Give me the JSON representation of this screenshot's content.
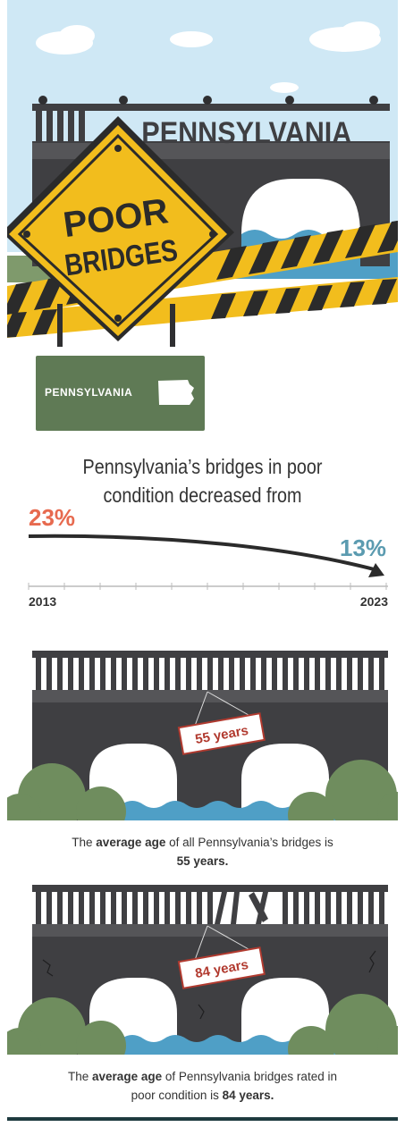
{
  "hero": {
    "sign_text": "PENNSYLVANIA",
    "warning_line1": "POOR",
    "warning_line2": "BRIDGES"
  },
  "state_badge": {
    "label": "PENNSYLVANIA"
  },
  "headline": {
    "line1": "Pennsylvania’s bridges in poor",
    "line2": "condition decreased from"
  },
  "trend": {
    "start_value": "23%",
    "end_value": "13%",
    "start_year": "2013",
    "end_year": "2023",
    "start_color": "#e76a4f",
    "end_color": "#5b9bb0"
  },
  "bridge_all": {
    "age_tag": "55 years",
    "caption_pre": "The ",
    "caption_bold1": "average age",
    "caption_mid": " of all Pennsylvania’s bridges is",
    "caption_bold2": "55 years."
  },
  "bridge_poor": {
    "age_tag": "84 years",
    "caption_pre": "The ",
    "caption_bold1": "average age",
    "caption_mid": " of Pennsylvania bridges rated in",
    "caption_line2_pre": "poor condition is ",
    "caption_bold2": "84 years."
  },
  "colors": {
    "sky": "#cfe8f5",
    "bridge_dark": "#3f3f42",
    "bridge_mid": "#555558",
    "warning_yellow": "#f2bd1d",
    "water": "#4f9fc6",
    "bush": "#5f7a55",
    "badge_green": "#5f7a55"
  }
}
